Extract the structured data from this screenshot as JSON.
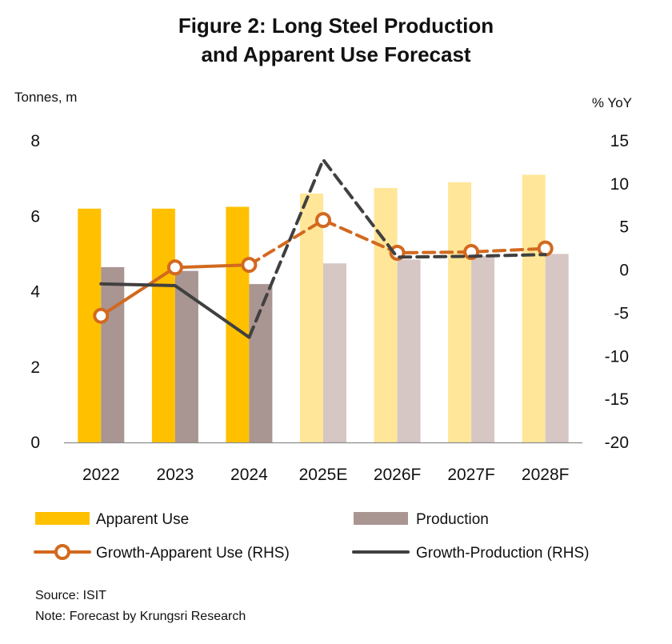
{
  "title_line1": "Figure 2: Long Steel Production",
  "title_line2": "and Apparent Use Forecast",
  "source": "Source: ISIT",
  "note": "Note: Forecast by Krungsri Research",
  "chart_data": {
    "type": "bar",
    "categories": [
      "2022",
      "2023",
      "2024",
      "2025E",
      "2026F",
      "2027F",
      "2028F"
    ],
    "forecast_start_index": 3,
    "ylabel_left": "Tonnes, m",
    "ylabel_right": "% YoY",
    "ylim_left": [
      0,
      8
    ],
    "ylim_right": [
      -20,
      15
    ],
    "left_ticks": [
      "0",
      "2",
      "4",
      "6",
      "8"
    ],
    "right_ticks": [
      "-20",
      "-15",
      "-10",
      "-5",
      "0",
      "5",
      "10",
      "15"
    ],
    "bars": [
      {
        "name": "Apparent Use",
        "color": "#FFC000",
        "forecast_color": "#FFE699",
        "values": [
          6.2,
          6.2,
          6.25,
          6.6,
          6.75,
          6.9,
          7.1
        ]
      },
      {
        "name": "Production",
        "color": "#A99592",
        "forecast_color": "#D6C7C4",
        "values": [
          4.65,
          4.55,
          4.2,
          4.75,
          4.85,
          4.95,
          5.0
        ]
      }
    ],
    "lines": [
      {
        "name": "Growth-Apparent Use (RHS)",
        "color": "#D2691E",
        "marker": "circle",
        "values": [
          -5.3,
          0.3,
          0.6,
          5.8,
          2.0,
          2.1,
          2.5
        ]
      },
      {
        "name": "Growth-Production (RHS)",
        "color": "#404040",
        "marker": "none",
        "values": [
          -1.6,
          -1.8,
          -7.8,
          12.8,
          1.5,
          1.6,
          1.8
        ]
      }
    ],
    "legend": [
      {
        "label": "Apparent Use",
        "kind": "bar",
        "series": 0
      },
      {
        "label": "Production",
        "kind": "bar",
        "series": 1
      },
      {
        "label": "Growth-Apparent Use (RHS)",
        "kind": "line",
        "series": 0
      },
      {
        "label": "Growth-Production (RHS)",
        "kind": "line",
        "series": 1
      }
    ],
    "legend_position": "bottom"
  }
}
